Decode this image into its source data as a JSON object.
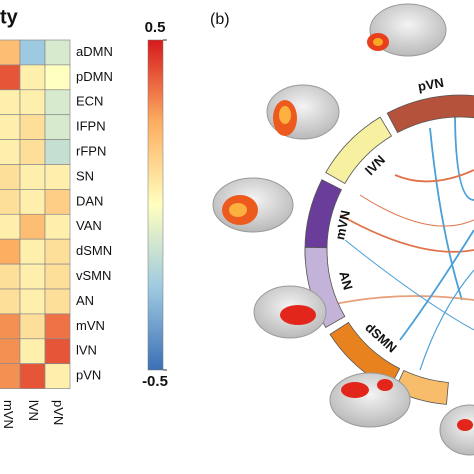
{
  "chart_data": {
    "type": "heatmap",
    "title": "ty",
    "rows": [
      "aDMN",
      "pDMN",
      "ECN",
      "IFPN",
      "rFPN",
      "SN",
      "DAN",
      "VAN",
      "dSMN",
      "vSMN",
      "AN",
      "mVN",
      "lVN",
      "pVN"
    ],
    "columns": [
      "mVN",
      "lVN",
      "pVN"
    ],
    "values": [
      [
        0.2,
        -0.25,
        -0.1
      ],
      [
        0.4,
        0.05,
        0.0
      ],
      [
        0.05,
        0.05,
        -0.1
      ],
      [
        0.05,
        0.1,
        -0.1
      ],
      [
        0.05,
        0.1,
        -0.15
      ],
      [
        0.1,
        0.05,
        0.05
      ],
      [
        0.1,
        0.05,
        0.15
      ],
      [
        0.05,
        0.2,
        0.05
      ],
      [
        0.25,
        0.05,
        0.1
      ],
      [
        0.1,
        0.05,
        0.1
      ],
      [
        0.1,
        0.05,
        0.1
      ],
      [
        0.3,
        0.1,
        0.35
      ],
      [
        0.3,
        0.05,
        0.4
      ],
      [
        0.3,
        0.4,
        0.05
      ]
    ],
    "clim": [
      -0.5,
      0.5
    ],
    "cticks": [
      -0.5,
      0.5
    ]
  },
  "panel_b": {
    "label": "(b)",
    "segments": [
      "pVN",
      "lVN",
      "mVN",
      "AN",
      "dSMN"
    ]
  }
}
